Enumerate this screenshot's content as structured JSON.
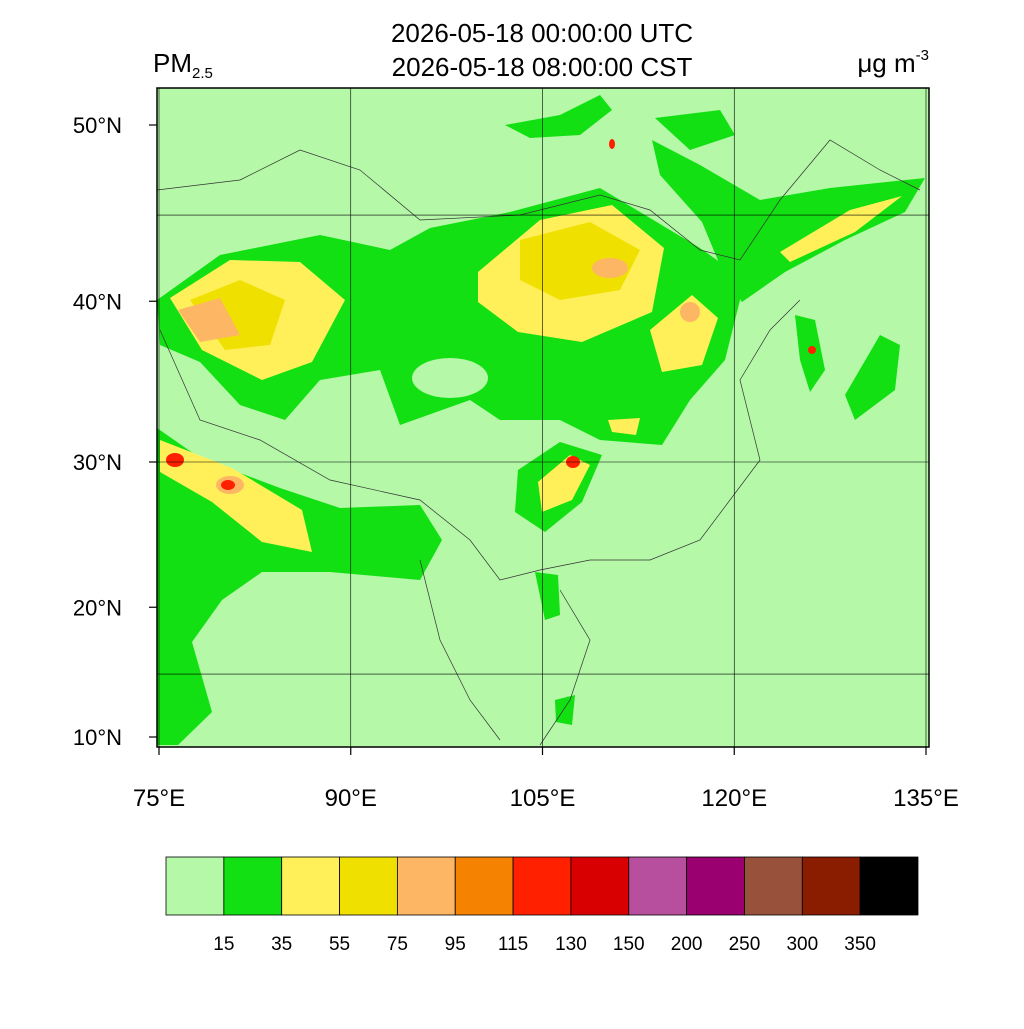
{
  "header": {
    "title_lines": [
      "2026-05-18 00:00:00 UTC",
      "2026-05-18 08:00:00 CST"
    ],
    "variable": {
      "main": "PM",
      "sub": "2.5"
    },
    "unit": {
      "main": "μg m",
      "sup": "-3"
    }
  },
  "map": {
    "lon_ticks": [
      {
        "value": 75,
        "label": "75°E"
      },
      {
        "value": 90,
        "label": "90°E"
      },
      {
        "value": 105,
        "label": "105°E"
      },
      {
        "value": 120,
        "label": "120°E"
      },
      {
        "value": 135,
        "label": "135°E"
      }
    ],
    "lat_ticks": [
      {
        "value": 50,
        "label": "50°N"
      },
      {
        "value": 40,
        "label": "40°N"
      },
      {
        "value": 30,
        "label": "30°N"
      },
      {
        "value": 20,
        "label": "20°N"
      },
      {
        "value": 10,
        "label": "10°N"
      }
    ],
    "lat_grid": [
      45,
      30,
      15
    ]
  },
  "colorbar": {
    "colors": [
      "#b4f8a8",
      "#12e012",
      "#fff05a",
      "#f0e000",
      "#fdb664",
      "#f58200",
      "#ff2000",
      "#d80000",
      "#b84e9e",
      "#9a0070",
      "#98523c",
      "#8a1c00",
      "#000000"
    ],
    "levels": [
      15,
      35,
      55,
      75,
      95,
      115,
      130,
      150,
      200,
      250,
      300,
      350
    ]
  }
}
